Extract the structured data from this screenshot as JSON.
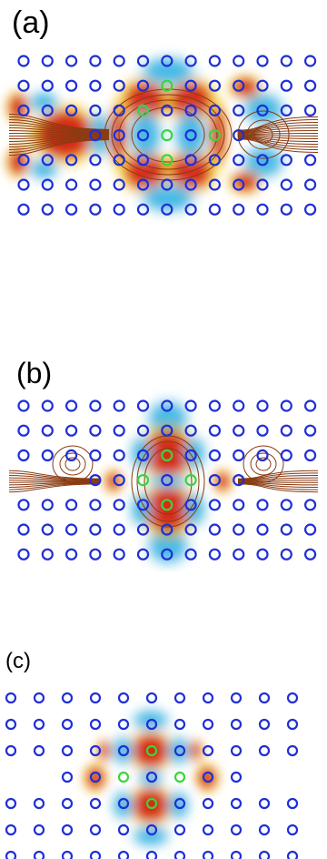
{
  "panels": [
    {
      "id": "a",
      "label": "(a)"
    },
    {
      "id": "b",
      "label": "(b)"
    },
    {
      "id": "c",
      "label": "(c)"
    }
  ],
  "colors": {
    "hole_outline": "#1f2fd6",
    "defect_hole_outline": "#39d639",
    "field_positive": "#d11a0a",
    "field_positive_mid": "#f2c300",
    "field_negative": "#36b6e6",
    "field_negative_light": "#bfe7f5",
    "contour_line": "#8a3a10",
    "background": "#ffffff"
  }
}
